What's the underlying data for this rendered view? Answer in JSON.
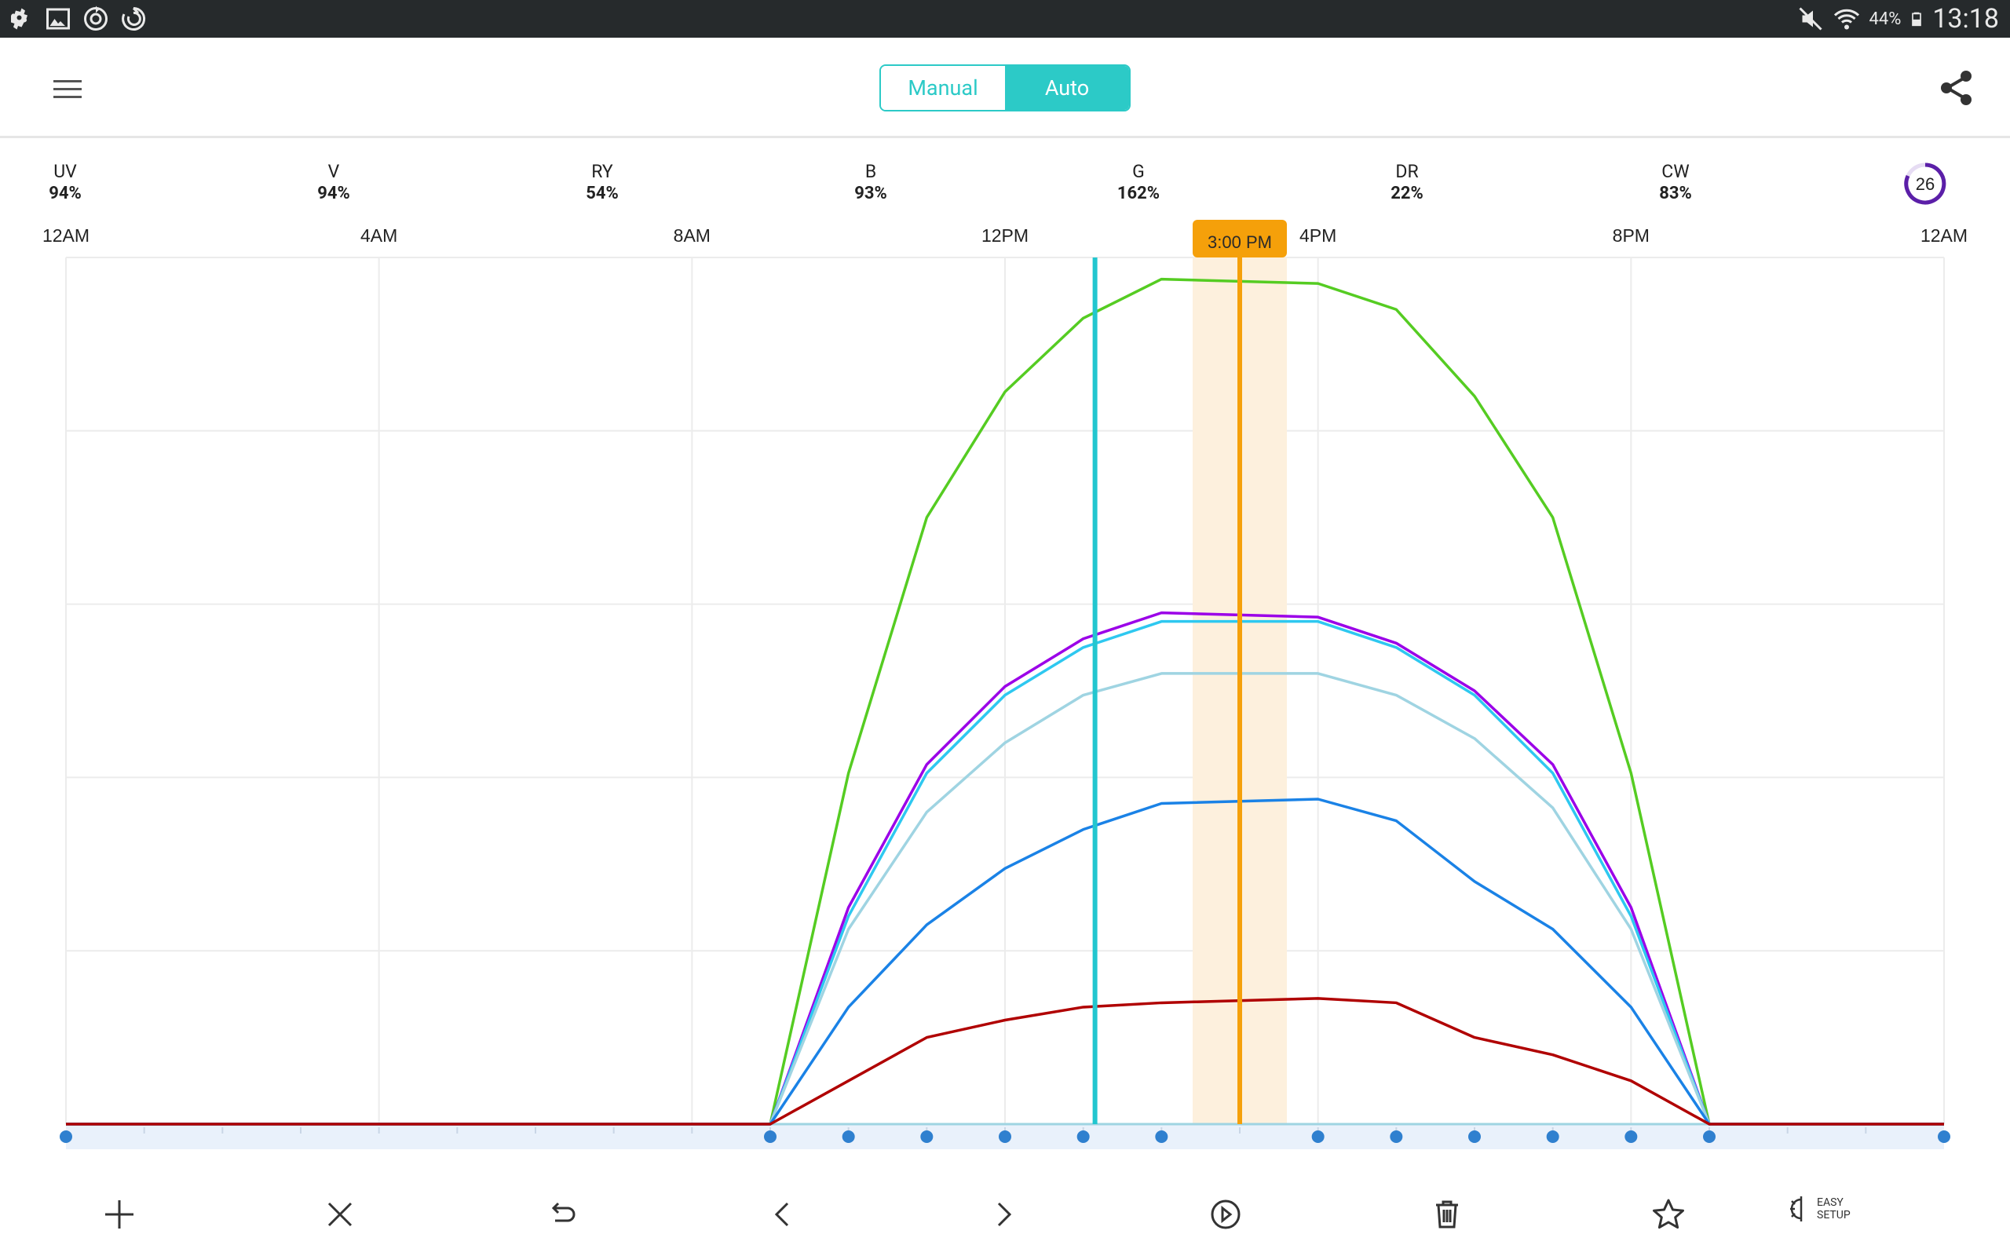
{
  "statusbar": {
    "battery": "44%",
    "time": "13:18",
    "icons_left": [
      "puzzle-icon",
      "image-icon",
      "sync-icon",
      "swirl-icon"
    ],
    "icons_right": [
      "mute-icon",
      "wifi-icon",
      "battery-icon"
    ]
  },
  "header": {
    "mode_options": [
      "Manual",
      "Auto"
    ],
    "selected_mode": "Auto",
    "accent_color": "#2ccac7",
    "menu_icon": "menu-icon",
    "share_icon": "share-icon"
  },
  "channels": [
    {
      "name": "UV",
      "percent": "94%"
    },
    {
      "name": "V",
      "percent": "94%"
    },
    {
      "name": "RY",
      "percent": "54%"
    },
    {
      "name": "B",
      "percent": "93%"
    },
    {
      "name": "G",
      "percent": "162%"
    },
    {
      "name": "DR",
      "percent": "22%"
    },
    {
      "name": "CW",
      "percent": "83%"
    }
  ],
  "counter": {
    "value": "26",
    "color": "#5b1fa8"
  },
  "timeline": {
    "ticks": [
      "12AM",
      "4AM",
      "8AM",
      "12PM",
      "4PM",
      "8PM",
      "12AM"
    ],
    "current_time_label": "3:00 PM",
    "current_time_hours": 15,
    "current_time_color": "#f5a00a",
    "cursor_hours": 13.15,
    "cursor_color": "#22c6cf"
  },
  "chart_data": {
    "type": "line",
    "x_unit": "hours",
    "xlim": [
      0,
      24
    ],
    "ylim": [
      0,
      200
    ],
    "grid": true,
    "x": [
      0,
      9,
      10,
      11,
      12,
      13,
      14,
      16,
      17,
      18,
      19,
      20,
      21,
      24
    ],
    "series": [
      {
        "color": "#55cc22",
        "values": [
          0,
          0,
          81,
          140,
          169,
          186,
          195,
          194,
          188,
          168,
          140,
          81,
          0,
          0
        ]
      },
      {
        "color": "#9b00e8",
        "values": [
          0,
          0,
          50,
          83,
          101,
          112,
          118,
          117,
          111,
          100,
          83,
          50,
          0,
          0
        ]
      },
      {
        "color": "#2ec8f0",
        "values": [
          0,
          0,
          48,
          81,
          99,
          110,
          116,
          116,
          110,
          99,
          81,
          48,
          0,
          0
        ]
      },
      {
        "color": "#9fd4e2",
        "values": [
          0,
          0,
          45,
          72,
          88,
          99,
          104,
          104,
          99,
          89,
          73,
          45,
          0,
          0
        ]
      },
      {
        "color": "#1a82e6",
        "values": [
          0,
          0,
          27,
          46,
          59,
          68,
          74,
          75,
          70,
          56,
          45,
          27,
          0,
          0
        ]
      },
      {
        "color": "#b00000",
        "values": [
          0,
          0,
          10,
          20,
          24,
          27,
          28,
          29,
          28,
          20,
          16,
          10,
          0,
          0
        ]
      }
    ],
    "base_line_color": "#9fd4e2",
    "schedule_points_hours": [
      0,
      9,
      10,
      11,
      12,
      13,
      14,
      16,
      17,
      18,
      19,
      20,
      21,
      24
    ],
    "point_color": "#2f80cf"
  },
  "toolbar": {
    "items": [
      "add-icon",
      "close-icon",
      "undo-icon",
      "chevron-left-icon",
      "chevron-right-icon",
      "play-icon",
      "trash-icon",
      "star-icon"
    ],
    "easy_setup_line1": "EASY",
    "easy_setup_line2": "SETUP"
  }
}
